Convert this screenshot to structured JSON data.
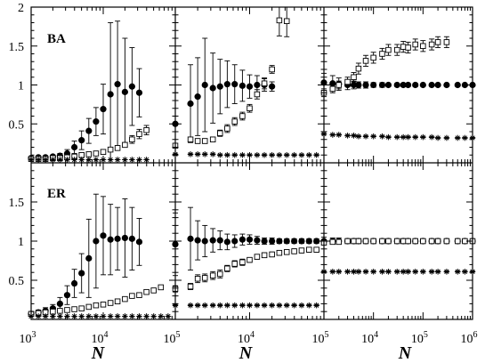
{
  "chart_data": {
    "type": "scatter",
    "layout": "2x3 grid of panels sharing axes",
    "xlabel": "N",
    "x_scale": "log",
    "ylim": [
      0,
      2
    ],
    "y_ticks": [
      0.5,
      1,
      1.5,
      2
    ],
    "rows": [
      {
        "label": "BA"
      },
      {
        "label": "ER"
      }
    ],
    "column_xlims": [
      [
        1000,
        100000
      ],
      [
        1000,
        100000
      ],
      [
        1000,
        1000000
      ]
    ],
    "x_tick_labels": [
      {
        "x": 1000,
        "text": "10",
        "exp": "3"
      },
      {
        "x": 10000,
        "text": "10",
        "exp": "4"
      },
      {
        "x": 100000,
        "text": "10",
        "exp": "5"
      },
      {
        "x": 1000000,
        "text": "10",
        "exp": "6"
      }
    ],
    "y_tick_labels": [
      {
        "y": 0.5,
        "text": "0.5"
      },
      {
        "y": 1,
        "text": "1"
      },
      {
        "y": 1.5,
        "text": "1.5"
      },
      {
        "y": 2,
        "text": "2"
      }
    ],
    "panels": [
      {
        "row": 0,
        "col": 0,
        "x": [
          1000,
          1260,
          1580,
          2000,
          2510,
          3160,
          3980,
          5010,
          6310,
          7940,
          10000,
          12600,
          15800,
          20000,
          25100,
          31600,
          39800,
          50100,
          63100,
          79400
        ],
        "series": [
          {
            "marker": "filled-circle",
            "y": [
              0.06,
              0.07,
              0.07,
              0.08,
              0.09,
              0.12,
              0.2,
              0.29,
              0.41,
              0.53,
              0.69,
              0.88,
              1.01,
              0.91,
              0.98,
              0.9
            ],
            "err": [
              0.01,
              0.02,
              0.02,
              0.02,
              0.03,
              0.05,
              0.08,
              0.12,
              0.16,
              0.18,
              0.32,
              0.92,
              0.81,
              0.69,
              0.5,
              0.31
            ]
          },
          {
            "marker": "open-square",
            "y": [
              0.05,
              0.05,
              0.05,
              0.06,
              0.06,
              0.07,
              0.08,
              0.1,
              0.11,
              0.12,
              0.14,
              0.17,
              0.19,
              0.23,
              0.3,
              0.37,
              0.42
            ],
            "err": [
              0.005,
              0.005,
              0.005,
              0.01,
              0.01,
              0.01,
              0.01,
              0.01,
              0.01,
              0.01,
              0.02,
              0.02,
              0.03,
              0.03,
              0.05,
              0.06,
              0.06
            ]
          },
          {
            "marker": "star",
            "y": [
              0.04,
              0.04,
              0.04,
              0.04,
              0.04,
              0.04,
              0.04,
              0.04,
              0.04,
              0.04,
              0.04,
              0.04,
              0.04,
              0.04,
              0.04,
              0.04,
              0.04
            ],
            "err": [
              0.003,
              0.003,
              0.003,
              0.003,
              0.003,
              0.003,
              0.003,
              0.003,
              0.003,
              0.003,
              0.003,
              0.003,
              0.003,
              0.003,
              0.003,
              0.003,
              0.003
            ]
          }
        ]
      },
      {
        "row": 0,
        "col": 1,
        "x": [
          1000,
          1600,
          2000,
          2500,
          3200,
          4000,
          5000,
          6300,
          8000,
          10000,
          12600,
          15800,
          20000,
          25100,
          31600,
          39800,
          50100,
          63100,
          79400
        ],
        "series": [
          {
            "marker": "filled-circle",
            "y": [
              0.5,
              0.76,
              0.85,
              1.0,
              0.96,
              0.98,
              1.01,
              1.01,
              0.99,
              0.98,
              1.0,
              1.0,
              0.98
            ],
            "err": [
              0.4,
              0.5,
              0.5,
              0.6,
              0.45,
              0.35,
              0.3,
              0.25,
              0.2,
              0.15,
              0.12,
              0.08,
              0.06
            ]
          },
          {
            "marker": "open-square",
            "y": [
              0.22,
              0.3,
              0.28,
              0.28,
              0.3,
              0.38,
              0.44,
              0.53,
              0.6,
              0.7,
              0.88,
              1.02,
              1.2,
              1.83,
              1.82
            ],
            "err": [
              0.03,
              0.03,
              0.03,
              0.03,
              0.03,
              0.04,
              0.05,
              0.05,
              0.05,
              0.05,
              0.06,
              0.07,
              0.05,
              0.2,
              0.2
            ]
          },
          {
            "marker": "star",
            "y": [
              0.11,
              0.11,
              0.11,
              0.11,
              0.11,
              0.1,
              0.1,
              0.1,
              0.1,
              0.1,
              0.1,
              0.1,
              0.1,
              0.1,
              0.1,
              0.1,
              0.1,
              0.1,
              0.1
            ],
            "err": [
              0.005,
              0.005,
              0.005,
              0.005,
              0.005,
              0.005,
              0.005,
              0.005,
              0.005,
              0.005,
              0.005,
              0.005,
              0.005,
              0.005,
              0.005,
              0.005,
              0.005,
              0.005,
              0.005
            ]
          }
        ]
      },
      {
        "row": 0,
        "col": 2,
        "x": [
          1000,
          1500,
          2000,
          3000,
          4000,
          5000,
          7000,
          10000,
          15000,
          20000,
          30000,
          40000,
          50000,
          70000,
          100000,
          150000,
          200000,
          300000,
          500000,
          700000,
          1000000
        ],
        "series": [
          {
            "marker": "filled-circle",
            "y": [
              1.03,
              1.02,
              1.01,
              1.0,
              1.0,
              1.0,
              1.0,
              1.0,
              1.0,
              1.0,
              1.0,
              1.0,
              1.0,
              1.0,
              1.0,
              1.0,
              1.0,
              1.0,
              1.0,
              1.0,
              1.0
            ],
            "err": [
              0.12,
              0.1,
              0.08,
              0.06,
              0.05,
              0.04,
              0.04,
              0.03,
              0.03,
              0.02,
              0.02,
              0.02,
              0.02,
              0.02,
              0.01,
              0.01,
              0.01,
              0.01,
              0.01,
              0.01,
              0.01
            ]
          },
          {
            "marker": "open-square",
            "y": [
              0.9,
              0.95,
              1.0,
              1.04,
              1.1,
              1.21,
              1.31,
              1.35,
              1.4,
              1.45,
              1.45,
              1.49,
              1.48,
              1.52,
              1.5,
              1.52,
              1.55,
              1.55
            ],
            "err": [
              0.05,
              0.05,
              0.05,
              0.06,
              0.06,
              0.07,
              0.07,
              0.07,
              0.07,
              0.07,
              0.07,
              0.07,
              0.07,
              0.07,
              0.07,
              0.07,
              0.07,
              0.07
            ]
          },
          {
            "marker": "star",
            "y": [
              0.37,
              0.36,
              0.36,
              0.35,
              0.35,
              0.34,
              0.34,
              0.34,
              0.34,
              0.33,
              0.33,
              0.33,
              0.33,
              0.33,
              0.33,
              0.33,
              0.32,
              0.32,
              0.32,
              0.32,
              0.32
            ],
            "err": [
              0.005,
              0.005,
              0.005,
              0.005,
              0.005,
              0.005,
              0.005,
              0.005,
              0.005,
              0.005,
              0.005,
              0.005,
              0.005,
              0.005,
              0.005,
              0.005,
              0.005,
              0.005,
              0.005,
              0.005,
              0.005
            ]
          }
        ]
      },
      {
        "row": 1,
        "col": 0,
        "x": [
          1000,
          1260,
          1580,
          2000,
          2510,
          3160,
          3980,
          5010,
          6310,
          7940,
          10000,
          12600,
          15800,
          20000,
          25100,
          31600,
          39800,
          50100,
          63100,
          79400
        ],
        "series": [
          {
            "marker": "filled-circle",
            "y": [
              0.07,
              0.09,
              0.11,
              0.14,
              0.2,
              0.31,
              0.46,
              0.59,
              0.78,
              1.0,
              1.07,
              1.02,
              1.03,
              1.04,
              1.03,
              0.99
            ],
            "err": [
              0.02,
              0.03,
              0.04,
              0.05,
              0.08,
              0.12,
              0.18,
              0.25,
              0.5,
              0.6,
              0.5,
              0.45,
              0.4,
              0.5,
              0.4,
              0.3
            ]
          },
          {
            "marker": "open-square",
            "y": [
              0.07,
              0.08,
              0.09,
              0.1,
              0.11,
              0.12,
              0.13,
              0.14,
              0.16,
              0.18,
              0.19,
              0.21,
              0.23,
              0.26,
              0.3,
              0.31,
              0.35,
              0.37,
              0.41
            ],
            "err": [
              0.01,
              0.01,
              0.01,
              0.01,
              0.01,
              0.01,
              0.01,
              0.01,
              0.01,
              0.01,
              0.01,
              0.02,
              0.02,
              0.02,
              0.02,
              0.02,
              0.02,
              0.02,
              0.02
            ]
          },
          {
            "marker": "star",
            "y": [
              0.04,
              0.04,
              0.04,
              0.04,
              0.04,
              0.04,
              0.04,
              0.04,
              0.04,
              0.04,
              0.04,
              0.04,
              0.04,
              0.04,
              0.04,
              0.04,
              0.04,
              0.04,
              0.04,
              0.04
            ],
            "err": [
              0.003,
              0.003,
              0.003,
              0.003,
              0.003,
              0.003,
              0.003,
              0.003,
              0.003,
              0.003,
              0.003,
              0.003,
              0.003,
              0.003,
              0.003,
              0.003,
              0.003,
              0.003,
              0.003,
              0.003
            ]
          }
        ]
      },
      {
        "row": 1,
        "col": 1,
        "x": [
          1000,
          1600,
          2000,
          2500,
          3200,
          4000,
          5000,
          6300,
          8000,
          10000,
          12600,
          15800,
          20000,
          25100,
          31600,
          39800,
          50100,
          63100,
          79400
        ],
        "series": [
          {
            "marker": "filled-circle",
            "y": [
              0.96,
              1.03,
              1.01,
              1.0,
              1.01,
              1.01,
              0.99,
              1.0,
              1.02,
              1.02,
              1.01,
              1.0,
              1.0,
              1.0,
              1.0,
              1.0,
              1.0,
              1.0,
              1.0
            ],
            "err": [
              0.4,
              0.4,
              0.25,
              0.2,
              0.15,
              0.12,
              0.1,
              0.08,
              0.07,
              0.06,
              0.05,
              0.04,
              0.04,
              0.03,
              0.03,
              0.03,
              0.03,
              0.03,
              0.03
            ]
          },
          {
            "marker": "open-square",
            "y": [
              0.39,
              0.42,
              0.52,
              0.53,
              0.56,
              0.58,
              0.65,
              0.71,
              0.73,
              0.76,
              0.8,
              0.82,
              0.83,
              0.85,
              0.86,
              0.87,
              0.88,
              0.89,
              0.89
            ],
            "err": [
              0.04,
              0.04,
              0.05,
              0.05,
              0.05,
              0.05,
              0.04,
              0.04,
              0.04,
              0.03,
              0.03,
              0.03,
              0.03,
              0.03,
              0.03,
              0.03,
              0.03,
              0.03,
              0.03
            ]
          },
          {
            "marker": "star",
            "y": [
              0.18,
              0.18,
              0.18,
              0.18,
              0.18,
              0.18,
              0.18,
              0.18,
              0.18,
              0.18,
              0.18,
              0.18,
              0.18,
              0.18,
              0.18,
              0.18,
              0.18,
              0.18,
              0.18
            ],
            "err": [
              0.005,
              0.005,
              0.005,
              0.005,
              0.005,
              0.005,
              0.005,
              0.005,
              0.005,
              0.005,
              0.005,
              0.005,
              0.005,
              0.005,
              0.005,
              0.005,
              0.005,
              0.005,
              0.005
            ]
          }
        ]
      },
      {
        "row": 1,
        "col": 2,
        "x": [
          1000,
          1500,
          2000,
          3000,
          4000,
          5000,
          7000,
          10000,
          15000,
          20000,
          30000,
          40000,
          50000,
          70000,
          100000,
          150000,
          200000,
          300000,
          500000,
          700000,
          1000000
        ],
        "series": [
          {
            "marker": "filled-circle",
            "y": [
              1.0,
              1.0,
              1.0,
              1.0,
              1.0,
              1.0,
              1.0,
              1.0,
              1.0,
              1.0,
              1.0,
              1.0,
              1.0,
              1.0,
              1.0,
              1.0,
              1.0,
              1.0,
              1.0,
              1.0,
              1.0
            ],
            "err": [
              0.05,
              0.04,
              0.04,
              0.03,
              0.03,
              0.03,
              0.03,
              0.03,
              0.02,
              0.02,
              0.02,
              0.02,
              0.02,
              0.02,
              0.02,
              0.02,
              0.02,
              0.02,
              0.02,
              0.02,
              0.02
            ]
          },
          {
            "marker": "open-square",
            "y": [
              0.98,
              0.99,
              0.99,
              1.0,
              1.0,
              1.0,
              1.0,
              1.0,
              1.0,
              1.0,
              1.0,
              1.0,
              1.0,
              1.0,
              1.0,
              1.0,
              1.0,
              1.0,
              1.0,
              1.0,
              1.0
            ],
            "err": [
              0.03,
              0.03,
              0.03,
              0.03,
              0.03,
              0.03,
              0.03,
              0.03,
              0.03,
              0.03,
              0.03,
              0.03,
              0.03,
              0.03,
              0.03,
              0.03,
              0.03,
              0.03,
              0.03,
              0.03,
              0.03
            ]
          },
          {
            "marker": "star",
            "y": [
              0.61,
              0.61,
              0.61,
              0.61,
              0.61,
              0.61,
              0.61,
              0.61,
              0.61,
              0.61,
              0.61,
              0.61,
              0.61,
              0.61,
              0.61,
              0.61,
              0.61,
              0.61,
              0.61,
              0.61,
              0.61
            ],
            "err": [
              0.005,
              0.005,
              0.005,
              0.005,
              0.005,
              0.005,
              0.005,
              0.005,
              0.005,
              0.005,
              0.005,
              0.005,
              0.005,
              0.005,
              0.005,
              0.005,
              0.005,
              0.005,
              0.005,
              0.005,
              0.005
            ]
          }
        ]
      }
    ]
  }
}
